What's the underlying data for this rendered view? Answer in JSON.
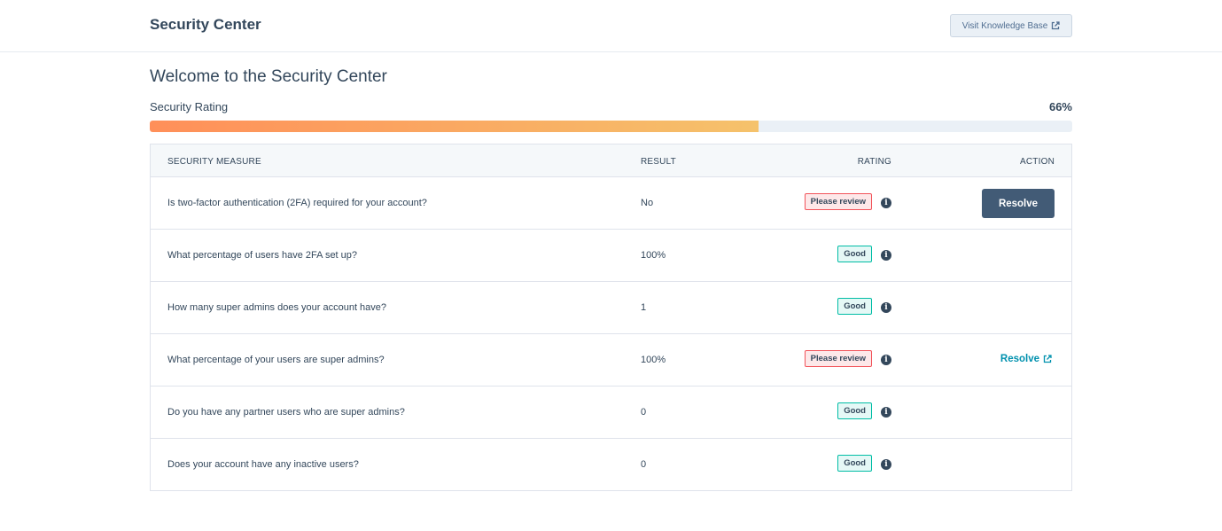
{
  "header": {
    "title": "Security Center",
    "kb_button_label": "Visit Knowledge Base",
    "kb_icon": "external-link-icon"
  },
  "main": {
    "welcome": "Welcome to the Security Center",
    "rating_label": "Security Rating",
    "rating_value": "66%",
    "rating_fraction": 0.66,
    "progress_colors": [
      "#ff8f59",
      "#f5c26b"
    ]
  },
  "table": {
    "columns": [
      "SECURITY MEASURE",
      "RESULT",
      "RATING",
      "ACTION"
    ],
    "rows": [
      {
        "question": "Is two-factor authentication (2FA) required for your account?",
        "result": "No",
        "rating": "Please review",
        "status": "bad",
        "action": "Resolve",
        "action_type": "button"
      },
      {
        "question": "What percentage of users have 2FA set up?",
        "result": "100%",
        "rating": "Good",
        "status": "good",
        "action": "",
        "action_type": "none"
      },
      {
        "question": "How many super admins does your account have?",
        "result": "1",
        "rating": "Good",
        "status": "good",
        "action": "",
        "action_type": "none"
      },
      {
        "question": "What percentage of your users are super admins?",
        "result": "100%",
        "rating": "Please review",
        "status": "bad",
        "action": "Resolve",
        "action_type": "link"
      },
      {
        "question": "Do you have any partner users who are super admins?",
        "result": "0",
        "rating": "Good",
        "status": "good",
        "action": "",
        "action_type": "none"
      },
      {
        "question": "Does your account have any inactive users?",
        "result": "0",
        "rating": "Good",
        "status": "good",
        "action": "",
        "action_type": "none"
      }
    ]
  },
  "colors": {
    "text": "#33475b",
    "bad_border": "#f2545b",
    "good_border": "#00bda5",
    "button_bg": "#425b76",
    "link": "#0091ae"
  }
}
